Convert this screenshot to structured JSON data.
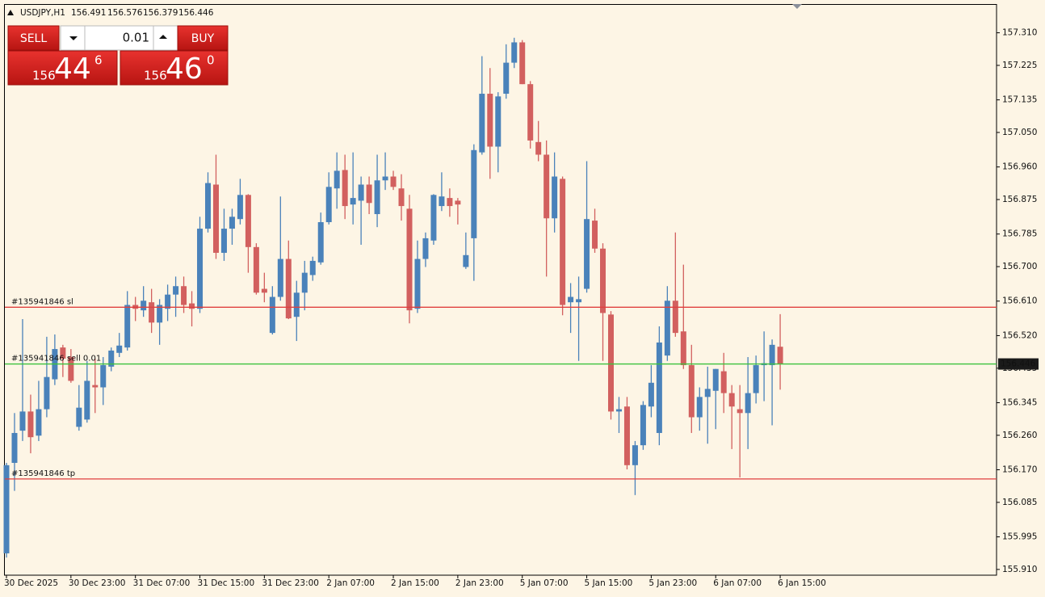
{
  "chart_data": {
    "type": "candlestick",
    "title": "USDJPY,H1",
    "categories": [
      "30 Dec 2025",
      null,
      null,
      null,
      null,
      null,
      null,
      null,
      "30 Dec 23:00",
      null,
      null,
      null,
      null,
      null,
      null,
      null,
      "31 Dec 07:00",
      null,
      null,
      null,
      null,
      null,
      null,
      null,
      "31 Dec 15:00",
      null,
      null,
      null,
      null,
      null,
      null,
      null,
      "31 Dec 23:00",
      null,
      null,
      null,
      null,
      null,
      null,
      null,
      "2 Jan 07:00",
      null,
      null,
      null,
      null,
      null,
      null,
      null,
      "2 Jan 15:00",
      null,
      null,
      null,
      null,
      null,
      null,
      null,
      "2 Jan 23:00",
      null,
      null,
      null,
      null,
      null,
      null,
      null,
      "5 Jan 07:00",
      null,
      null,
      null,
      null,
      null,
      null,
      null,
      "5 Jan 15:00",
      null,
      null,
      null,
      null,
      null,
      null,
      null,
      "5 Jan 23:00",
      null,
      null,
      null,
      null,
      null,
      null,
      null,
      "6 Jan 07:00",
      null,
      null,
      null,
      null,
      null,
      null,
      null,
      "6 Jan 15:00"
    ],
    "open": [
      155.952,
      156.188,
      156.272,
      156.322,
      156.259,
      156.328,
      156.406,
      156.489,
      156.464,
      156.282,
      156.301,
      156.391,
      156.385,
      156.439,
      156.475,
      156.489,
      156.6,
      156.586,
      156.607,
      156.554,
      156.59,
      156.627,
      156.649,
      156.604,
      156.59,
      156.799,
      156.914,
      156.736,
      156.799,
      156.824,
      156.887,
      156.751,
      156.642,
      156.527,
      156.621,
      156.72,
      156.569,
      156.632,
      156.678,
      156.711,
      156.816,
      156.904,
      156.952,
      156.862,
      156.872,
      156.914,
      156.837,
      156.925,
      156.935,
      156.904,
      156.851,
      156.59,
      156.72,
      156.768,
      156.858,
      156.879,
      156.872,
      156.699,
      156.774,
      156.998,
      157.151,
      157.013,
      157.151,
      157.232,
      157.285,
      157.176,
      157.025,
      156.992,
      156.826,
      156.929,
      156.607,
      156.607,
      156.642,
      156.82,
      156.747,
      156.575,
      156.322,
      156.335,
      156.182,
      156.234,
      156.335,
      156.266,
      156.468,
      156.611,
      156.531,
      156.443,
      156.307,
      156.36,
      156.376,
      156.427,
      156.37,
      156.328,
      156.318,
      156.37,
      156.443,
      156.443,
      156.491
    ],
    "high": [
      156.188,
      156.318,
      156.563,
      156.366,
      156.402,
      156.517,
      156.523,
      156.496,
      156.485,
      156.391,
      156.454,
      156.46,
      156.464,
      156.489,
      156.527,
      156.636,
      156.621,
      156.649,
      156.642,
      156.615,
      156.653,
      156.674,
      156.674,
      156.636,
      156.83,
      156.946,
      156.992,
      156.851,
      156.851,
      156.929,
      156.889,
      156.761,
      156.684,
      156.649,
      156.883,
      156.768,
      156.663,
      156.715,
      156.726,
      156.841,
      156.946,
      156.998,
      156.992,
      156.998,
      156.935,
      156.935,
      156.992,
      156.998,
      156.95,
      156.941,
      156.887,
      156.768,
      156.789,
      156.889,
      156.946,
      156.904,
      156.879,
      156.789,
      157.019,
      157.249,
      157.218,
      157.155,
      157.28,
      157.297,
      157.291,
      157.184,
      157.08,
      157.029,
      156.998,
      156.935,
      156.657,
      156.674,
      156.975,
      156.851,
      156.761,
      156.584,
      156.36,
      156.36,
      156.245,
      156.349,
      156.443,
      156.544,
      156.649,
      156.789,
      156.705,
      156.496,
      156.385,
      156.439,
      156.433,
      156.475,
      156.391,
      156.391,
      156.464,
      156.468,
      156.531,
      156.51,
      156.576
    ],
    "low": [
      155.941,
      156.115,
      156.245,
      156.213,
      156.245,
      156.307,
      156.391,
      156.412,
      156.397,
      156.272,
      156.293,
      156.318,
      156.339,
      156.427,
      156.464,
      156.481,
      156.558,
      156.569,
      156.527,
      156.496,
      156.558,
      156.569,
      156.579,
      156.544,
      156.579,
      156.789,
      156.72,
      156.715,
      156.757,
      156.81,
      156.684,
      156.627,
      156.607,
      156.523,
      156.611,
      156.563,
      156.506,
      156.586,
      156.663,
      156.705,
      156.81,
      156.851,
      156.824,
      156.81,
      156.757,
      156.837,
      156.803,
      156.9,
      156.9,
      156.82,
      156.552,
      156.579,
      156.699,
      156.757,
      156.845,
      156.83,
      156.81,
      156.694,
      156.663,
      156.992,
      156.929,
      156.946,
      157.138,
      157.218,
      157.176,
      157.008,
      156.975,
      156.674,
      156.789,
      156.573,
      156.527,
      156.454,
      156.632,
      156.736,
      156.454,
      156.301,
      156.266,
      156.171,
      156.104,
      156.222,
      156.307,
      156.234,
      156.454,
      156.517,
      156.433,
      156.266,
      156.272,
      156.238,
      156.276,
      156.318,
      156.224,
      156.15,
      156.224,
      156.343,
      156.349,
      156.286,
      156.379
    ],
    "close": [
      156.182,
      156.266,
      156.322,
      156.255,
      156.328,
      156.412,
      156.485,
      156.46,
      156.402,
      156.332,
      156.402,
      156.385,
      156.443,
      156.481,
      156.494,
      156.6,
      156.59,
      156.611,
      156.554,
      156.6,
      156.627,
      156.649,
      156.6,
      156.59,
      156.799,
      156.918,
      156.736,
      156.799,
      156.83,
      156.887,
      156.751,
      156.632,
      156.632,
      156.621,
      156.72,
      156.565,
      156.632,
      156.684,
      156.715,
      156.816,
      156.908,
      156.95,
      156.858,
      156.879,
      156.914,
      156.866,
      156.925,
      156.935,
      156.908,
      156.858,
      156.586,
      156.72,
      156.774,
      156.887,
      156.883,
      156.858,
      156.862,
      156.73,
      157.004,
      157.151,
      157.013,
      157.144,
      157.232,
      157.285,
      157.176,
      157.029,
      156.992,
      156.826,
      156.935,
      156.6,
      156.621,
      156.615,
      156.824,
      156.747,
      156.579,
      156.322,
      156.328,
      156.182,
      156.234,
      156.339,
      156.397,
      156.502,
      156.611,
      156.527,
      156.443,
      156.307,
      156.36,
      156.381,
      156.433,
      156.37,
      156.335,
      156.318,
      156.37,
      156.443,
      156.448,
      156.496,
      156.446
    ],
    "up_color": "#4a82ba",
    "down_color": "#d2605f",
    "ylim": [
      155.895,
      157.385
    ],
    "yticks": [
      {
        "value": 157.31,
        "label": "157.310"
      },
      {
        "value": 157.225,
        "label": "157.225"
      },
      {
        "value": 157.135,
        "label": "157.135"
      },
      {
        "value": 157.05,
        "label": "157.050"
      },
      {
        "value": 156.96,
        "label": "156.960"
      },
      {
        "value": 156.875,
        "label": "156.875"
      },
      {
        "value": 156.785,
        "label": "156.785"
      },
      {
        "value": 156.7,
        "label": "156.700"
      },
      {
        "value": 156.61,
        "label": "156.610"
      },
      {
        "value": 156.52,
        "label": "156.520"
      },
      {
        "value": 156.435,
        "label": "156.435"
      },
      {
        "value": 156.345,
        "label": "156.345"
      },
      {
        "value": 156.26,
        "label": "156.260"
      },
      {
        "value": 156.17,
        "label": "156.170"
      },
      {
        "value": 156.085,
        "label": "156.085"
      },
      {
        "value": 155.995,
        "label": "155.995"
      },
      {
        "value": 155.91,
        "label": "155.910"
      }
    ],
    "grid": false,
    "order_lines": [
      {
        "label": "#135941846 sl",
        "value": 156.594,
        "color": "#e0403f"
      },
      {
        "label": "#135941846 sell 0.01",
        "value": 156.446,
        "color": "#3cc23c"
      },
      {
        "label": "#135941846 tp",
        "value": 156.146,
        "color": "#e0403f"
      }
    ]
  },
  "trade_panel": {
    "sell": "SELL",
    "buy": "BUY",
    "volume": "0.01",
    "bid": {
      "figure": "156",
      "pips": "44",
      "point": "6"
    },
    "ask": {
      "figure": "156",
      "pips": "46",
      "point": "0"
    }
  }
}
